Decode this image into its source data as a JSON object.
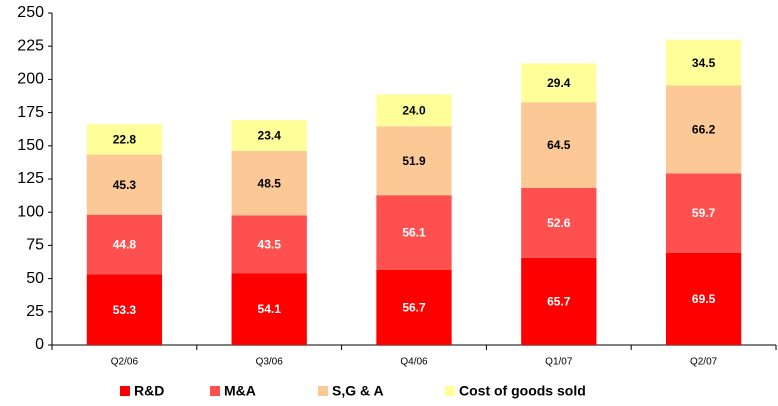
{
  "chart_data": {
    "type": "stacked_bar",
    "categories": [
      "Q2/06",
      "Q3/06",
      "Q4/06",
      "Q1/07",
      "Q2/07"
    ],
    "series": [
      {
        "name": "R&D",
        "color": "#ff0000",
        "label_color": "#ffffff",
        "values": [
          53.3,
          54.1,
          56.7,
          65.7,
          69.5
        ]
      },
      {
        "name": "M&A",
        "color": "#ff5050",
        "label_color": "#ffffff",
        "values": [
          44.8,
          43.5,
          56.1,
          52.6,
          59.7
        ]
      },
      {
        "name": "S,G & A",
        "color": "#fcc896",
        "label_color": "#000000",
        "values": [
          45.3,
          48.5,
          51.9,
          64.5,
          66.2
        ]
      },
      {
        "name": "Cost of goods sold",
        "color": "#ffff99",
        "label_color": "#000000",
        "values": [
          22.8,
          23.4,
          24,
          29.4,
          34.5
        ],
        "value_labels": [
          "22.8",
          "23.4",
          "24.0",
          "29.4",
          "34.5"
        ]
      }
    ],
    "ylim": [
      0,
      250
    ],
    "yticks": [
      0,
      25,
      50,
      75,
      100,
      125,
      150,
      175,
      200,
      225,
      250
    ],
    "grid": false,
    "legend": "bottom"
  }
}
